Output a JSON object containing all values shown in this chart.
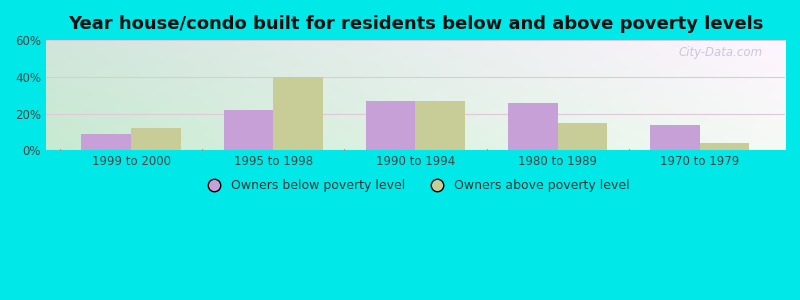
{
  "title": "Year house/condo built for residents below and above poverty levels",
  "categories": [
    "1999 to 2000",
    "1995 to 1998",
    "1990 to 1994",
    "1980 to 1989",
    "1970 to 1979"
  ],
  "below_poverty": [
    9,
    22,
    27,
    26,
    14
  ],
  "above_poverty": [
    12,
    40,
    27,
    15,
    4
  ],
  "below_color": "#c8a0d8",
  "above_color": "#c8cc96",
  "ylim": [
    0,
    60
  ],
  "yticks": [
    0,
    20,
    40,
    60
  ],
  "ytick_labels": [
    "0%",
    "20%",
    "40%",
    "60%"
  ],
  "bar_width": 0.35,
  "legend_below": "Owners below poverty level",
  "legend_above": "Owners above poverty level",
  "bg_top_left": "#c8e8c8",
  "bg_top_right": "#e8f0f0",
  "bg_bottom_left": "#c0e8d0",
  "bg_bottom_right": "#e0f0f0",
  "outer_bg": "#00e8e8",
  "title_fontsize": 13,
  "watermark": "City-Data.com",
  "grid_color": "#e0c8d8"
}
